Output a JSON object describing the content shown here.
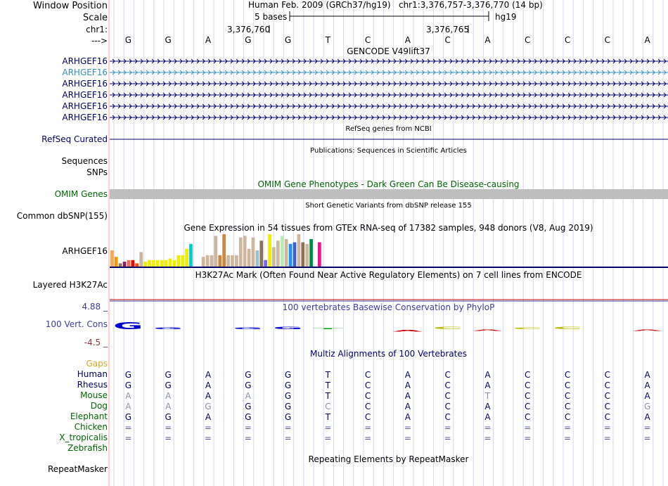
{
  "header": {
    "window_position_label": "Window Position",
    "scale_label": "Scale",
    "chr_label": "chr1:",
    "strand_label": "--->",
    "assembly": "Human Feb. 2009 (GRCh37/hg19)",
    "position": "chr1:3,376,757-3,376,770 (14 bp)",
    "scale_text": "5 bases",
    "scale_db": "hg19",
    "tick1": "3,376,760",
    "tick2": "3,376,765"
  },
  "bases": [
    "G",
    "G",
    "A",
    "G",
    "G",
    "T",
    "C",
    "A",
    "C",
    "A",
    "C",
    "C",
    "C",
    "A"
  ],
  "gencode": {
    "title": "GENCODE V49lift37",
    "rows": [
      {
        "label": "ARHGEF16",
        "color": "#000066"
      },
      {
        "label": "ARHGEF16",
        "color": "#3690B8"
      },
      {
        "label": "ARHGEF16",
        "color": "#000066"
      },
      {
        "label": "ARHGEF16",
        "color": "#000066"
      },
      {
        "label": "ARHGEF16",
        "color": "#000066"
      },
      {
        "label": "ARHGEF16",
        "color": "#000066"
      }
    ]
  },
  "refseq": {
    "title": "RefSeq genes from NCBI",
    "label": "RefSeq Curated"
  },
  "publications": {
    "title": "Publications: Sequences in Scientific Articles",
    "label": "Sequences"
  },
  "snps_label": "SNPs",
  "omim": {
    "title": "OMIM Gene Phenotypes - Dark Green Can Be Disease-causing",
    "label": "OMIM Genes"
  },
  "dbsnp": {
    "title": "Short Genetic Variants from dbSNP release 155",
    "label": "Common dbSNP(155)"
  },
  "gtex": {
    "title": "Gene Expression in 54 tissues from GTEx RNA-seq of 17382 samples, 948 donors (V8, Aug 2019)",
    "label": "ARHGEF16",
    "bars": [
      {
        "v": 0.5,
        "c": "#FFA54F"
      },
      {
        "v": 0.3,
        "c": "#EE9A00"
      },
      {
        "v": 0.1,
        "c": "#8B7355"
      },
      {
        "v": 0.15,
        "c": "#8B1C62"
      },
      {
        "v": 0.2,
        "c": "#EE6A50"
      },
      {
        "v": 0.2,
        "c": "#FF0000"
      },
      {
        "v": 0.1,
        "c": "#FF4500"
      },
      {
        "v": 0.45,
        "c": "#CDB79E"
      },
      {
        "v": 0.15,
        "c": "#EEEE00"
      },
      {
        "v": 0.2,
        "c": "#EEEE00"
      },
      {
        "v": 0.2,
        "c": "#EEEE00"
      },
      {
        "v": 0.2,
        "c": "#EEEE00"
      },
      {
        "v": 0.2,
        "c": "#EEEE00"
      },
      {
        "v": 0.2,
        "c": "#EEEE00"
      },
      {
        "v": 0.25,
        "c": "#EEEE00"
      },
      {
        "v": 0.2,
        "c": "#EEEE00"
      },
      {
        "v": 0.35,
        "c": "#EEEE00"
      },
      {
        "v": 0.35,
        "c": "#EEEE00"
      },
      {
        "v": 0.55,
        "c": "#EEEE00"
      },
      {
        "v": 0.7,
        "c": "#00CDCD"
      },
      {
        "v": 0.0,
        "c": "#FFFFFF"
      },
      {
        "v": 0.0,
        "c": "#FFFFFF"
      },
      {
        "v": 0.3,
        "c": "#CDB79E"
      },
      {
        "v": 0.35,
        "c": "#CDB79E"
      },
      {
        "v": 0.35,
        "c": "#CDB79E"
      },
      {
        "v": 0.95,
        "c": "#CDB79E"
      },
      {
        "v": 0.35,
        "c": "#CD853F"
      },
      {
        "v": 1.0,
        "c": "#CD853F"
      },
      {
        "v": 0.35,
        "c": "#CDB79E"
      },
      {
        "v": 0.35,
        "c": "#CDB79E"
      },
      {
        "v": 0.35,
        "c": "#CDB79E"
      },
      {
        "v": 0.9,
        "c": "#CDB79E"
      },
      {
        "v": 0.95,
        "c": "#CDB79E"
      },
      {
        "v": 0.55,
        "c": "#CDB79E"
      },
      {
        "v": 0.9,
        "c": "#CDB79E"
      },
      {
        "v": 0.5,
        "c": "#9AC0CD"
      },
      {
        "v": 0.8,
        "c": "#8B7355"
      },
      {
        "v": 0.2,
        "c": "#7A67EE"
      },
      {
        "v": 1.0,
        "c": "#EEEE00"
      },
      {
        "v": 0.6,
        "c": "#CDB79E"
      },
      {
        "v": 0.8,
        "c": "#CDB79E"
      },
      {
        "v": 0.95,
        "c": "#B4EEB4"
      },
      {
        "v": 0.85,
        "c": "#CDB79E"
      },
      {
        "v": 0.7,
        "c": "#1E90FF"
      },
      {
        "v": 0.75,
        "c": "#3A5FCD"
      },
      {
        "v": 1.0,
        "c": "#CDB79E"
      },
      {
        "v": 0.75,
        "c": "#8B7355"
      },
      {
        "v": 0.7,
        "c": "#CDB79E"
      },
      {
        "v": 0.85,
        "c": "#008B45"
      },
      {
        "v": 0.0,
        "c": "#FFFFFF"
      },
      {
        "v": 0.75,
        "c": "#EE1289"
      },
      {
        "v": 0.0,
        "c": "#FFFFFF"
      },
      {
        "v": 0.0,
        "c": "#FFFFFF"
      },
      {
        "v": 0.0,
        "c": "#FFFFFF"
      }
    ]
  },
  "h3k27ac": {
    "title": "H3K27Ac Mark (Often Found Near Active Regulatory Elements) on 7 cell lines from ENCODE",
    "label": "Layered H3K27Ac"
  },
  "conservation": {
    "title": "100 vertebrates Basewise Conservation by PhyloP",
    "label": "100 Vert. Cons",
    "max_label": "4.88 _",
    "min_label": "-4.5 _",
    "scores": [
      3.2,
      0.8,
      0.0,
      0.9,
      1.1,
      0.5,
      0.0,
      -0.8,
      1.0,
      -0.6,
      0.9,
      1.0,
      0.0,
      -0.6
    ],
    "colors": [
      "#0000CC",
      "#0000CC",
      "#FFFFFF",
      "#0000CC",
      "#0000CC",
      "#00A000",
      "#FFFFFF",
      "#CC0000",
      "#BBBB00",
      "#CC0000",
      "#BBBB00",
      "#BBBB00",
      "#FFFFFF",
      "#CC0000"
    ]
  },
  "multiz": {
    "title": "Multiz Alignments of 100 Vertebrates",
    "gaps_label": "Gaps",
    "species": [
      {
        "name": "Human",
        "color": "#000066",
        "bases": [
          "G",
          "G",
          "A",
          "G",
          "G",
          "T",
          "C",
          "A",
          "C",
          "A",
          "C",
          "C",
          "C",
          "A"
        ],
        "grey": []
      },
      {
        "name": "Rhesus",
        "color": "#000066",
        "bases": [
          "G",
          "G",
          "A",
          "G",
          "G",
          "T",
          "C",
          "A",
          "C",
          "A",
          "C",
          "C",
          "C",
          "A"
        ],
        "grey": []
      },
      {
        "name": "Mouse",
        "color": "#006600",
        "bases": [
          "A",
          "A",
          "A",
          "A",
          "G",
          "T",
          "C",
          "A",
          "C",
          "T",
          "C",
          "C",
          "C",
          "A"
        ],
        "grey": [
          0,
          1,
          3,
          9
        ]
      },
      {
        "name": "Dog",
        "color": "#006600",
        "bases": [
          "A",
          "A",
          "G",
          "G",
          "G",
          "C",
          "C",
          "A",
          "C",
          "A",
          "C",
          "C",
          "C",
          "G"
        ],
        "grey": [
          0,
          1,
          2,
          5,
          13
        ]
      },
      {
        "name": "Elephant",
        "color": "#006600",
        "bases": [
          "G",
          "G",
          "A",
          "G",
          "G",
          "T",
          "C",
          "A",
          "C",
          "A",
          "C",
          "C",
          "C",
          "A"
        ],
        "grey": []
      },
      {
        "name": "Chicken",
        "color": "#006600",
        "bases": [
          "=",
          "=",
          "=",
          "=",
          "=",
          "=",
          "=",
          "=",
          "=",
          "=",
          "=",
          "=",
          "=",
          "="
        ],
        "grey": []
      },
      {
        "name": "X_tropicalis",
        "color": "#006600",
        "bases": [
          "=",
          "=",
          "=",
          "=",
          "=",
          "=",
          "=",
          "=",
          "=",
          "=",
          "=",
          "=",
          "=",
          "="
        ],
        "grey": []
      },
      {
        "name": "Zebrafish",
        "color": "#006600",
        "bases": [
          "",
          "",
          "",
          "",
          "",
          "",
          "",
          "",
          "",
          "",
          "",
          "",
          "",
          ""
        ],
        "grey": []
      }
    ]
  },
  "repeatmasker": {
    "title": "Repeating Elements by RepeatMasker",
    "label": "RepeatMasker"
  },
  "colors": {
    "navy": "#000066",
    "gencode_highlight": "#3690B8",
    "omim_green": "#006600",
    "omim_bar": "#BEBEBE",
    "cons_label": "#3D3D9E",
    "cons_min": "#993333",
    "gaps": "#DAA520",
    "grid": "#C8C8E6",
    "left_border": "#FFA0A0",
    "h3k_line": "#CC0000"
  }
}
